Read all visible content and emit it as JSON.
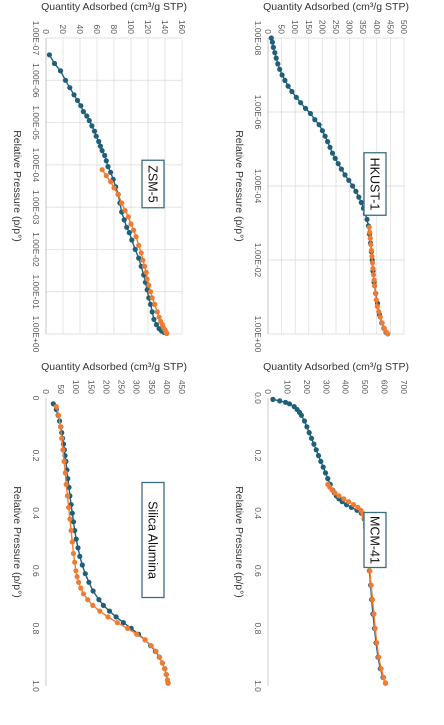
{
  "chart_data": [
    {
      "type": "scatter",
      "annotation": "ZSM-5",
      "xlabel": "Relative Pressure (p/p°)",
      "ylabel": "Quantity Adsorbed (cm³/g STP)",
      "xscale": "log",
      "xlim": [
        1e-07,
        1
      ],
      "ylim": [
        0,
        160
      ],
      "x_tick_labels": [
        "1.00E-07",
        "1.00E-06",
        "1.00E-05",
        "1.00E-04",
        "1.00E-03",
        "1.00E-02",
        "1.00E-01",
        "1.00E+00"
      ],
      "y_tick_labels": [
        "0",
        "20",
        "40",
        "60",
        "80",
        "100",
        "120",
        "140",
        "160"
      ],
      "grid": true,
      "colors": {
        "adsorption": "#1f5f7a",
        "desorption": "#f07c33"
      },
      "series": [
        {
          "key": "adsorption",
          "x": [
            2.5e-07,
            4e-07,
            6e-07,
            1e-06,
            1.5e-06,
            2.2e-06,
            3e-06,
            4e-06,
            5.5e-06,
            7e-06,
            9e-06,
            1.2e-05,
            1.6e-05,
            2.1e-05,
            2.8e-05,
            3.6e-05,
            4.6e-05,
            6e-05,
            8e-05,
            0.00011,
            0.00015,
            0.00022,
            0.00033,
            0.0005,
            0.0008,
            0.0013,
            0.002,
            0.003,
            0.004,
            0.006,
            0.01,
            0.016,
            0.025,
            0.04,
            0.06,
            0.09,
            0.14,
            0.2,
            0.3,
            0.45,
            0.6,
            0.75,
            0.85,
            0.92,
            0.97
          ],
          "y": [
            4,
            10,
            17,
            23,
            28,
            33,
            37,
            41,
            44,
            48,
            51,
            54,
            57,
            59,
            62,
            64,
            66,
            69,
            71,
            73,
            76,
            79,
            82,
            85,
            87,
            89,
            92,
            95,
            98,
            101,
            105,
            109,
            112,
            115,
            117,
            119,
            121,
            123,
            125,
            127,
            130,
            133,
            136,
            139,
            142
          ]
        },
        {
          "key": "desorption",
          "x": [
            0.97,
            0.9,
            0.8,
            0.7,
            0.6,
            0.5,
            0.4,
            0.3,
            0.2,
            0.14,
            0.1,
            0.07,
            0.05,
            0.035,
            0.025,
            0.018,
            0.012,
            0.008,
            0.005,
            0.0035,
            0.0025,
            0.0017,
            0.0012,
            0.0008,
            0.0005,
            0.00035,
            0.00025,
            0.00018,
            0.00013
          ],
          "y": [
            142,
            141,
            140,
            138,
            137,
            135,
            133,
            131,
            128,
            125,
            123,
            121,
            119,
            118,
            116,
            114,
            112,
            109,
            106,
            103,
            100,
            97,
            93,
            89,
            85,
            80,
            76,
            71,
            66
          ]
        }
      ]
    },
    {
      "type": "scatter",
      "annotation": "Silica Alumina",
      "xlabel": "Relative Pressure (p/p°)",
      "ylabel": "Quantity Adsorbed (cm³/g STP)",
      "xlim": [
        0,
        1
      ],
      "ylim": [
        0,
        450
      ],
      "x_tick_labels": [
        "0",
        "0.2",
        "0.4",
        "0.6",
        "0.8",
        "1.0"
      ],
      "y_tick_labels": [
        "0",
        "50",
        "100",
        "150",
        "200",
        "250",
        "300",
        "350",
        "400",
        "450"
      ],
      "grid": false,
      "colors": {
        "adsorption": "#1f5f7a",
        "desorption": "#f07c33"
      },
      "series": [
        {
          "key": "adsorption",
          "x": [
            0.02,
            0.04,
            0.06,
            0.08,
            0.1,
            0.12,
            0.14,
            0.16,
            0.18,
            0.2,
            0.22,
            0.25,
            0.28,
            0.31,
            0.34,
            0.37,
            0.4,
            0.43,
            0.46,
            0.49,
            0.52,
            0.55,
            0.58,
            0.61,
            0.64,
            0.67,
            0.7,
            0.72,
            0.74,
            0.76,
            0.78,
            0.8,
            0.82,
            0.84,
            0.86,
            0.88,
            0.9,
            0.92,
            0.94,
            0.96,
            0.98,
            0.99
          ],
          "y": [
            24,
            34,
            40,
            45,
            49,
            52,
            55,
            58,
            61,
            63,
            66,
            69,
            72,
            76,
            79,
            83,
            87,
            91,
            95,
            100,
            106,
            112,
            120,
            130,
            142,
            156,
            175,
            190,
            210,
            232,
            256,
            282,
            306,
            328,
            346,
            362,
            375,
            385,
            393,
            398,
            402,
            404
          ]
        },
        {
          "key": "desorption",
          "x": [
            0.99,
            0.98,
            0.96,
            0.94,
            0.92,
            0.9,
            0.88,
            0.86,
            0.84,
            0.82,
            0.8,
            0.78,
            0.76,
            0.74,
            0.72,
            0.7,
            0.68,
            0.66,
            0.64,
            0.62,
            0.6,
            0.57,
            0.54,
            0.5,
            0.46,
            0.42,
            0.38,
            0.34,
            0.3,
            0.26,
            0.22,
            0.18,
            0.14,
            0.1,
            0.06,
            0.03
          ],
          "y": [
            404,
            402,
            398,
            392,
            385,
            376,
            364,
            348,
            328,
            300,
            270,
            236,
            205,
            178,
            155,
            138,
            124,
            115,
            108,
            103,
            99,
            95,
            91,
            87,
            83,
            79,
            75,
            71,
            67,
            64,
            60,
            56,
            52,
            48,
            42,
            34
          ]
        }
      ]
    },
    {
      "type": "scatter",
      "annotation": "HKUST-1",
      "xlabel": "Relative Pressure (p/p°)",
      "ylabel": "Quantity Adsorbed (cm³/g STP)",
      "xscale": "log",
      "xlim": [
        1e-08,
        1
      ],
      "ylim": [
        0,
        500
      ],
      "x_tick_labels": [
        "1.00E-08",
        "1.00E-06",
        "1.00E-04",
        "1.00E-02",
        "1.00E+00"
      ],
      "y_tick_labels": [
        "0",
        "50",
        "100",
        "150",
        "200",
        "250",
        "300",
        "350",
        "400",
        "450",
        "500"
      ],
      "grid": true,
      "colors": {
        "adsorption": "#1f5f7a",
        "desorption": "#f07c33"
      },
      "series": [
        {
          "key": "adsorption",
          "x": [
            1e-08,
            1.3e-08,
            1.8e-08,
            2.5e-08,
            3.5e-08,
            5e-08,
            7e-08,
            1e-07,
            1.4e-07,
            2e-07,
            2.8e-07,
            4e-07,
            5.6e-07,
            8e-07,
            1.1e-06,
            1.6e-06,
            2.2e-06,
            3.2e-06,
            4.5e-06,
            6.3e-06,
            9e-06,
            1.3e-05,
            1.8e-05,
            2.5e-05,
            3.5e-05,
            5e-05,
            7e-05,
            0.0001,
            0.00014,
            0.0002,
            0.00028,
            0.0004,
            0.00056,
            0.0008,
            0.0012,
            0.002,
            0.0035,
            0.006,
            0.01,
            0.02,
            0.04,
            0.08,
            0.15,
            0.3,
            0.5,
            0.7,
            0.9,
            0.99
          ],
          "y": [
            12,
            16,
            20,
            25,
            30,
            36,
            43,
            52,
            62,
            74,
            88,
            104,
            120,
            138,
            156,
            172,
            188,
            200,
            210,
            219,
            228,
            237,
            247,
            258,
            270,
            283,
            297,
            311,
            323,
            334,
            343,
            351,
            358,
            364,
            369,
            373,
            377,
            380,
            383,
            386,
            390,
            396,
            403,
            410,
            418,
            426,
            434,
            440
          ]
        },
        {
          "key": "desorption",
          "x": [
            0.99,
            0.9,
            0.7,
            0.5,
            0.35,
            0.25,
            0.18,
            0.12,
            0.08,
            0.05,
            0.035,
            0.025,
            0.017,
            0.012,
            0.008,
            0.0055,
            0.0038,
            0.0026,
            0.0018,
            0.0013
          ],
          "y": [
            440,
            436,
            428,
            420,
            413,
            407,
            402,
            398,
            395,
            392,
            390,
            388,
            386,
            384,
            382,
            380,
            378,
            376,
            374,
            372
          ]
        }
      ]
    },
    {
      "type": "scatter",
      "annotation": "MCM-41",
      "xlabel": "Relative Pressure (p/p°)",
      "ylabel": "Quantity Adsorbed (cm³/g STP)",
      "xlim": [
        0,
        1
      ],
      "ylim": [
        0,
        700
      ],
      "x_tick_labels": [
        "0.0",
        "0.2",
        "0.4",
        "0.6",
        "0.8",
        "1.0"
      ],
      "y_tick_labels": [
        "0",
        "100",
        "200",
        "300",
        "400",
        "500",
        "600",
        "700"
      ],
      "grid": false,
      "colors": {
        "adsorption": "#1f5f7a",
        "desorption": "#f07c33"
      },
      "series": [
        {
          "key": "adsorption",
          "x": [
            0.005,
            0.01,
            0.015,
            0.02,
            0.03,
            0.04,
            0.05,
            0.06,
            0.08,
            0.1,
            0.12,
            0.14,
            0.16,
            0.18,
            0.2,
            0.22,
            0.24,
            0.26,
            0.28,
            0.3,
            0.32,
            0.33,
            0.34,
            0.35,
            0.36,
            0.37,
            0.38,
            0.39,
            0.4,
            0.42,
            0.45,
            0.5,
            0.55,
            0.6,
            0.65,
            0.7,
            0.75,
            0.8,
            0.85,
            0.9,
            0.94,
            0.97,
            0.99
          ],
          "y": [
            25,
            60,
            90,
            110,
            135,
            150,
            162,
            172,
            188,
            200,
            212,
            224,
            236,
            248,
            260,
            272,
            284,
            296,
            308,
            320,
            333,
            342,
            352,
            365,
            382,
            404,
            430,
            458,
            480,
            495,
            503,
            510,
            516,
            522,
            528,
            534,
            540,
            548,
            556,
            566,
            578,
            592,
            605
          ]
        },
        {
          "key": "desorption",
          "x": [
            0.99,
            0.97,
            0.94,
            0.9,
            0.85,
            0.8,
            0.75,
            0.7,
            0.65,
            0.6,
            0.55,
            0.5,
            0.47,
            0.44,
            0.42,
            0.41,
            0.4,
            0.39,
            0.38,
            0.37,
            0.36,
            0.35,
            0.34,
            0.33,
            0.32,
            0.31,
            0.3
          ],
          "y": [
            605,
            595,
            582,
            570,
            560,
            552,
            545,
            538,
            531,
            524,
            517,
            510,
            506,
            502,
            498,
            494,
            488,
            478,
            462,
            440,
            415,
            390,
            365,
            345,
            330,
            318,
            308
          ]
        }
      ]
    }
  ]
}
